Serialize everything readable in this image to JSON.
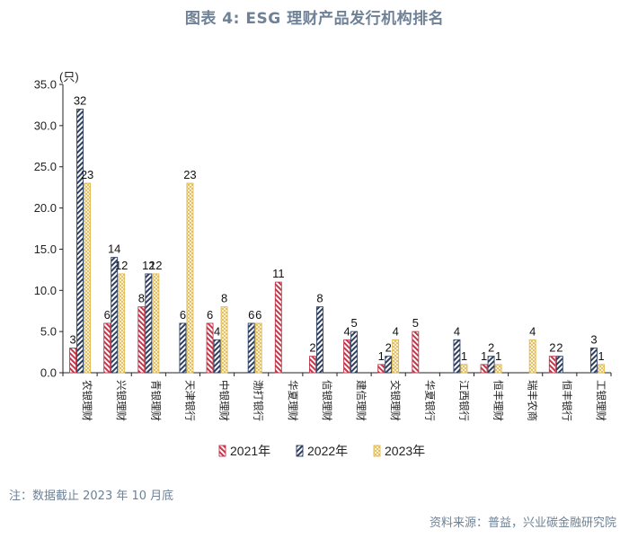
{
  "title": "图表 4:  ESG 理财产品发行机构排名",
  "note": "注：数据截止 2023 年 10 月底",
  "source": "资料来源：普益，兴业碳金融研究院",
  "colors": {
    "2021年": "#c0394b",
    "2022年": "#2f4060",
    "2023年": "#e0b84a"
  },
  "chart_data": {
    "type": "bar",
    "unit_label": "(只)",
    "categories": [
      "农银理财",
      "兴银理财",
      "青银理财",
      "天津银行",
      "中银理财",
      "渤打银行",
      "华夏理财",
      "信银理财",
      "建信理财",
      "交银理财",
      "华夏银行",
      "江西银行",
      "恒丰理财",
      "瑞丰农商",
      "恒丰银行",
      "工银理财"
    ],
    "series": [
      {
        "name": "2021年",
        "values": [
          3,
          6,
          8,
          null,
          6,
          null,
          11,
          2,
          4,
          1,
          5,
          null,
          1,
          null,
          2,
          null
        ]
      },
      {
        "name": "2022年",
        "values": [
          32,
          14,
          12,
          6,
          4,
          6,
          null,
          8,
          5,
          2,
          null,
          4,
          2,
          null,
          2,
          3
        ]
      },
      {
        "name": "2023年",
        "values": [
          23,
          12,
          12,
          23,
          8,
          6,
          null,
          null,
          null,
          4,
          null,
          1,
          1,
          4,
          null,
          1
        ]
      }
    ],
    "ylim": [
      0,
      35
    ],
    "yticks": [
      "0.0",
      "5.0",
      "10.0",
      "15.0",
      "20.0",
      "25.0",
      "30.0",
      "35.0"
    ],
    "legend": "bottom",
    "grid": false
  }
}
